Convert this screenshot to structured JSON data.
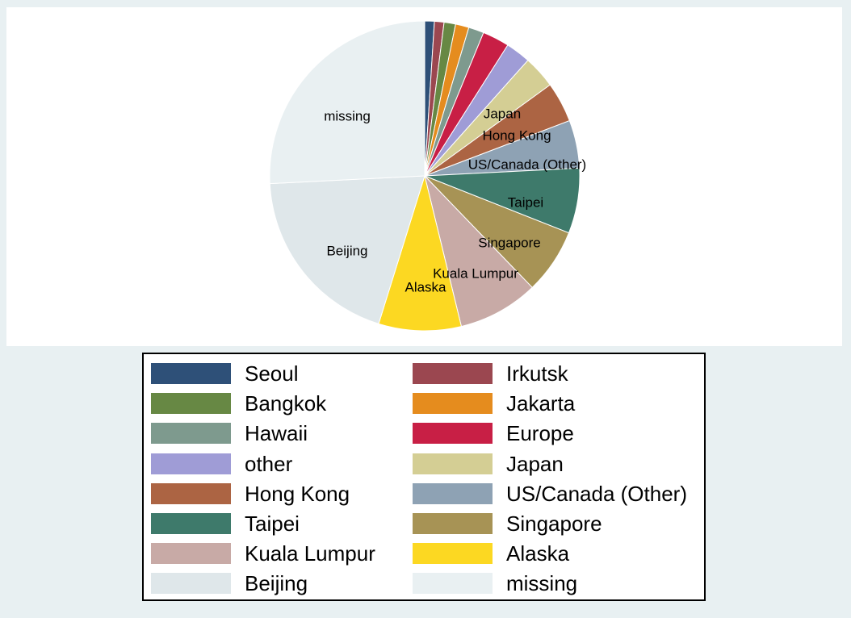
{
  "chart_data": {
    "type": "pie",
    "title": "",
    "legend_position": "bottom",
    "slices": [
      {
        "label": "Seoul",
        "value": 1.0,
        "color": "#2e5078"
      },
      {
        "label": "Irkutsk",
        "value": 1.0,
        "color": "#9b4750"
      },
      {
        "label": "Bangkok",
        "value": 1.2,
        "color": "#678844"
      },
      {
        "label": "Jakarta",
        "value": 1.4,
        "color": "#e58c1e"
      },
      {
        "label": "Hawaii",
        "value": 1.6,
        "color": "#7e9a8e"
      },
      {
        "label": "Europe",
        "value": 2.8,
        "color": "#c81f45"
      },
      {
        "label": "other",
        "value": 2.6,
        "color": "#9f9cd6"
      },
      {
        "label": "Japan",
        "value": 3.4,
        "color": "#d4ce94"
      },
      {
        "label": "Hong Kong",
        "value": 4.2,
        "color": "#ac6443"
      },
      {
        "label": "US/Canada (Other)",
        "value": 5.0,
        "color": "#8ea2b4"
      },
      {
        "label": "Taipei",
        "value": 6.8,
        "color": "#3e7a6b"
      },
      {
        "label": "Singapore",
        "value": 6.8,
        "color": "#a79355"
      },
      {
        "label": "Kuala Lumpur",
        "value": 8.4,
        "color": "#c8aaa6"
      },
      {
        "label": "Alaska",
        "value": 8.6,
        "color": "#fcd822"
      },
      {
        "label": "Beijing",
        "value": 19.4,
        "color": "#dfe7ea"
      },
      {
        "label": "missing",
        "value": 25.8,
        "color": "#e9f0f2"
      }
    ],
    "slice_labels": [
      {
        "label": "Japan"
      },
      {
        "label": "Hong Kong"
      },
      {
        "label": "US/Canada (Other)"
      },
      {
        "label": "Taipei"
      },
      {
        "label": "Singapore"
      },
      {
        "label": "Kuala Lumpur"
      },
      {
        "label": "Alaska"
      },
      {
        "label": "Beijing"
      },
      {
        "label": "missing"
      }
    ]
  }
}
